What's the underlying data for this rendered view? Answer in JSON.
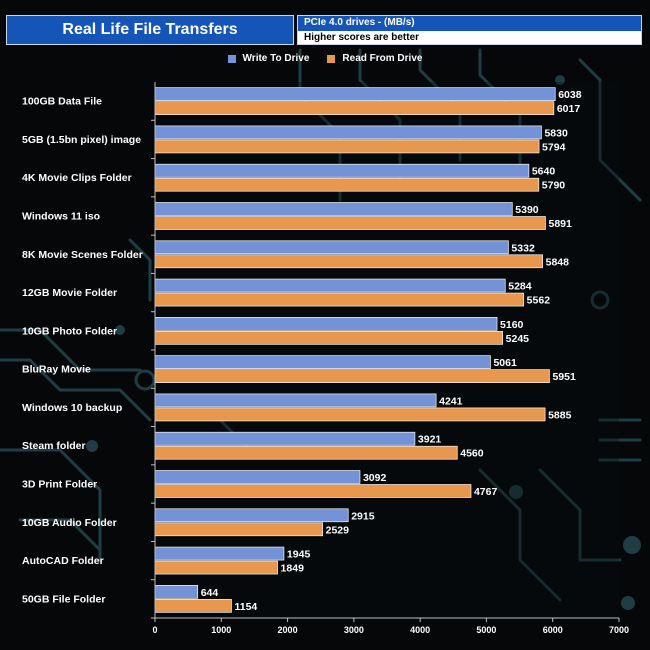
{
  "header": {
    "title": "Real Life File Transfers",
    "subtitle_line1": "PCIe 4.0 drives - (MB/s)",
    "subtitle_line2": "Higher scores are better"
  },
  "colors": {
    "write": "#7393d6",
    "read": "#e8984e",
    "title_bg": "#1555b8"
  },
  "chart_data": {
    "type": "bar",
    "orientation": "horizontal",
    "categories": [
      "100GB Data File",
      "5GB (1.5bn pixel) image",
      "4K Movie Clips Folder",
      "Windows 11 iso",
      "8K Movie Scenes Folder",
      "12GB Movie Folder",
      "10GB Photo Folder",
      "BluRay Movie",
      "Windows 10 backup",
      "Steam folder",
      "3D Print Folder",
      "10GB Audio Folder",
      "AutoCAD Folder",
      "50GB File Folder"
    ],
    "series": [
      {
        "name": "Write To  Drive",
        "values": [
          6038,
          5830,
          5640,
          5390,
          5332,
          5284,
          5160,
          5061,
          4241,
          3921,
          3092,
          2915,
          1945,
          644
        ]
      },
      {
        "name": "Read From  Drive",
        "values": [
          6017,
          5794,
          5790,
          5891,
          5848,
          5562,
          5245,
          5951,
          5885,
          4560,
          4767,
          2529,
          1849,
          1154
        ]
      }
    ],
    "xlim": [
      0,
      7000
    ],
    "xticks": [
      0,
      1000,
      2000,
      3000,
      4000,
      5000,
      6000,
      7000
    ],
    "legend_position": "top-center",
    "grid": false
  }
}
